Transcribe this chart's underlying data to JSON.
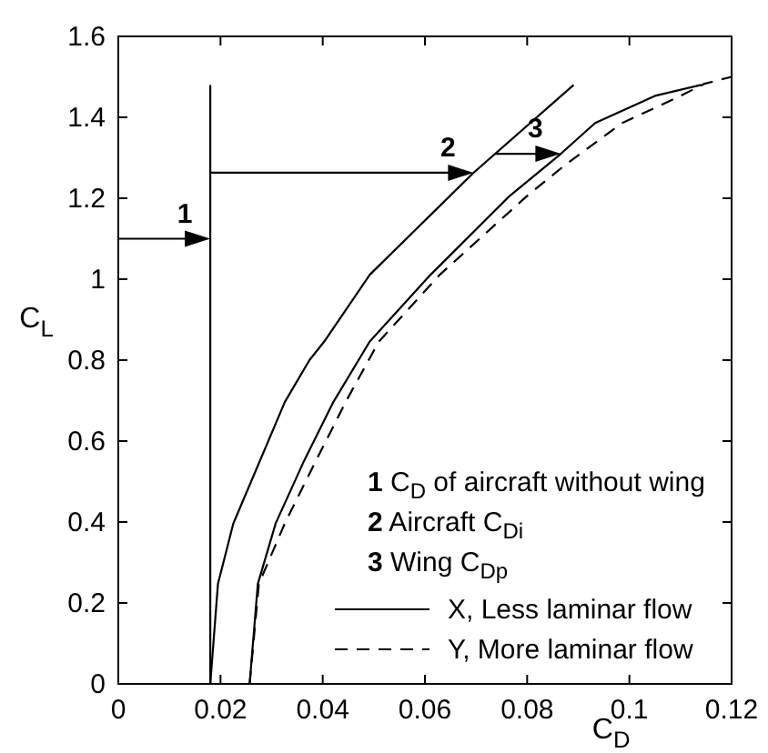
{
  "chart_data": {
    "type": "line",
    "xlabel": "C$_{D}$",
    "ylabel": "C$_{L}$",
    "xlim": [
      0,
      0.12
    ],
    "ylim": [
      0,
      1.6
    ],
    "xticks": [
      0,
      0.02,
      0.04,
      0.06,
      0.08,
      0.1,
      0.12
    ],
    "yticks": [
      0,
      0.2,
      0.4,
      0.6,
      0.8,
      1,
      1.2,
      1.4,
      1.6
    ],
    "grid": false,
    "legend": "bottom right",
    "marker": "none",
    "series": [
      {
        "color": "#000000",
        "line_style": "solid",
        "x": [
          0.018,
          0.018
        ],
        "values": [
          0,
          1.48
        ]
      },
      {
        "color": "#000000",
        "line_style": "solid",
        "x": [
          0.018,
          0.0195,
          0.0225,
          0.0326,
          0.0374,
          0.0403,
          0.0492,
          0.0695,
          0.0891
        ],
        "values": [
          0,
          0.247,
          0.396,
          0.697,
          0.8,
          0.846,
          1.011,
          1.263,
          1.48
        ]
      },
      {
        "name": "X, Less laminar flow",
        "color": "#000000",
        "line_style": "solid",
        "x": [
          0.0257,
          0.0273,
          0.0308,
          0.0362,
          0.0421,
          0.0492,
          0.0611,
          0.0766,
          0.0866,
          0.0933,
          0.105,
          0.114
        ],
        "values": [
          0,
          0.247,
          0.397,
          0.547,
          0.697,
          0.846,
          1.011,
          1.206,
          1.31,
          1.386,
          1.453,
          1.48
        ]
      },
      {
        "name": "Y, More laminar flow",
        "color": "#000000",
        "line_style": "dashed",
        "x": [
          0.0257,
          0.0275,
          0.0326,
          0.0385,
          0.0445,
          0.051,
          0.0629,
          0.08,
          0.0873,
          0.0986,
          0.1087,
          0.1147,
          0.12
        ],
        "values": [
          0,
          0.247,
          0.397,
          0.547,
          0.697,
          0.846,
          1.011,
          1.206,
          1.281,
          1.386,
          1.445,
          1.483,
          1.5
        ]
      }
    ],
    "annotations": [
      {
        "text": "1",
        "x": 0.018,
        "y": 1.1
      },
      {
        "text": "2",
        "x": 0.0695,
        "y": 1.263
      },
      {
        "text": "3",
        "x": 0.0866,
        "y": 1.31
      },
      "1 C$_{D}$ of aircraft without wing",
      "2 Aircraft C$_{Di}$",
      "3 Wing C$_{Dp}$"
    ]
  }
}
